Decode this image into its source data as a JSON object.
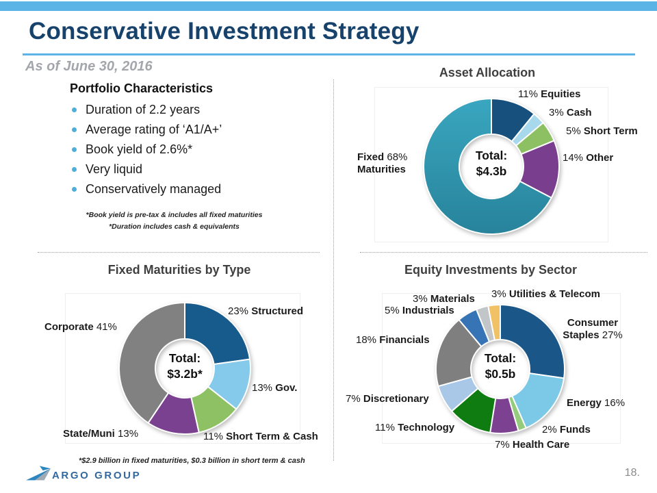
{
  "slide": {
    "title": "Conservative Investment Strategy",
    "subtitle": "As of June 30, 2016",
    "page_number": "18."
  },
  "portfolio": {
    "heading": "Portfolio Characteristics",
    "bullets": [
      "Duration of 2.2 years",
      "Average rating of ‘A1/A+’",
      "Book yield of 2.6%*",
      "Very liquid",
      "Conservatively managed"
    ],
    "footnotes": [
      "*Book yield is pre-tax & includes all fixed maturities",
      "*Duration includes cash & equivalents"
    ]
  },
  "footer": {
    "footnote": "*$2.9 billion in fixed maturities, $0.3 billion in short term & cash",
    "logo_text": "ARGO GROUP"
  },
  "chart_data": [
    {
      "type": "donut",
      "title": "Asset Allocation",
      "center": {
        "line1": "Total:",
        "line2": "$4.3b"
      },
      "categories": [
        "Equities",
        "Cash",
        "Short Term",
        "Other",
        "Fixed Maturities"
      ],
      "values": [
        11,
        3,
        5,
        14,
        68
      ],
      "unit": "percent",
      "start_angle_deg": 0,
      "direction": "clockwise",
      "colors": [
        "#17507D",
        "#A8D8EC",
        "#8DC063",
        "#7A3E8F",
        [
          "#3AA6BF",
          "#27839B"
        ]
      ],
      "labels": {
        "equities": {
          "pct": "11% ",
          "name": "Equities"
        },
        "cash": {
          "pct": "3% ",
          "name": "Cash"
        },
        "short_term": {
          "pct": "5% ",
          "name": "Short Term"
        },
        "other": {
          "pct": "14% ",
          "name": "Other"
        },
        "fixed": {
          "l1b": "Fixed ",
          "l1r": "68%",
          "l2b": "Maturities"
        }
      }
    },
    {
      "type": "donut",
      "title": "Fixed Maturities by Type",
      "center": {
        "line1": "Total:",
        "line2": "$3.2b*"
      },
      "categories": [
        "Structured",
        "Gov.",
        "Short Term & Cash",
        "State/Muni",
        "Corporate"
      ],
      "values": [
        23,
        13,
        11,
        13,
        41
      ],
      "unit": "percent",
      "start_angle_deg": 0,
      "direction": "clockwise",
      "colors": [
        "#175A8C",
        "#85CAEA",
        "#8DC163",
        "#7B4191",
        "#818181"
      ],
      "labels": {
        "structured": {
          "pct": "23% ",
          "name": "Structured"
        },
        "gov": {
          "pct": "13% ",
          "name": "Gov."
        },
        "short_term_cash": {
          "pct": "11% ",
          "name": "Short Term & Cash"
        },
        "state_muni": {
          "name": "State/Muni ",
          "pct": "13%"
        },
        "corporate": {
          "name": "Corporate ",
          "pct": "41%"
        }
      }
    },
    {
      "type": "donut",
      "title": "Equity Investments by Sector",
      "center": {
        "line1": "Total:",
        "line2": "$0.5b"
      },
      "categories": [
        "Consumer Staples",
        "Energy",
        "Funds",
        "Health Care",
        "Technology",
        "Discretionary",
        "Financials",
        "Industrials",
        "Materials",
        "Utilities & Telecom"
      ],
      "values": [
        27,
        16,
        2,
        7,
        11,
        7,
        18,
        5,
        3,
        3
      ],
      "unit": "percent",
      "start_angle_deg": 0,
      "direction": "clockwise",
      "colors": [
        "#1A5687",
        "#7BC9E6",
        "#94CB7C",
        "#7C4190",
        "#0E7C11",
        "#A9C7E7",
        "#7F7F7F",
        "#3674B5",
        "#C3C6C9",
        "#F0C265"
      ],
      "labels": {
        "consumer": {
          "name1": "Consumer",
          "name2": "Staples ",
          "pct": "27%"
        },
        "energy": {
          "name": "Energy ",
          "pct": "16%"
        },
        "funds": {
          "pct": "2% ",
          "name": "Funds"
        },
        "health_care": {
          "pct": "7% ",
          "name": "Health Care"
        },
        "technology": {
          "pct": "11% ",
          "name": "Technology"
        },
        "discretionary": {
          "pct": "7% ",
          "name": "Discretionary"
        },
        "financials": {
          "pct": "18% ",
          "name": "Financials"
        },
        "industrials": {
          "pct": "5% ",
          "name": "Industrials"
        },
        "materials": {
          "pct": "3% ",
          "name": "Materials"
        },
        "utilities": {
          "pct": "3% ",
          "name": "Utilities & Telecom"
        }
      }
    }
  ]
}
